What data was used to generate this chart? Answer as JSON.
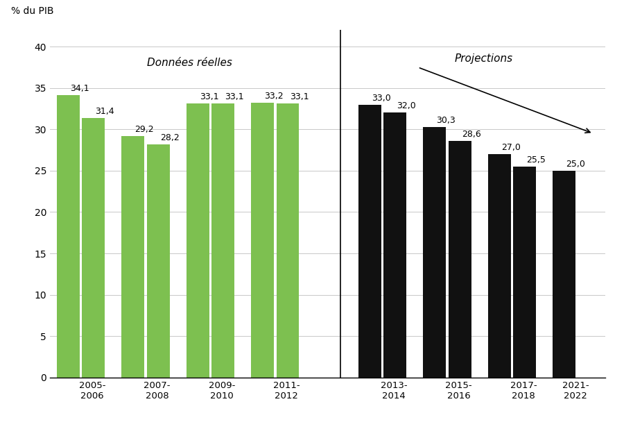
{
  "actual_values": [
    34.1,
    31.4,
    29.2,
    28.2,
    33.1,
    33.1,
    33.2,
    33.1
  ],
  "proj_values": [
    33.0,
    32.0,
    30.3,
    28.6,
    27.0,
    25.5,
    25.0
  ],
  "bar_labels_actual": [
    "34,1",
    "31,4",
    "29,2",
    "28,2",
    "33,1",
    "33,1",
    "33,2",
    "33,1"
  ],
  "bar_labels_proj": [
    "33,0",
    "32,0",
    "30,3",
    "28,6",
    "27,0",
    "25,5",
    "25,0"
  ],
  "actual_xtick_labels": [
    "2005-\n2006",
    "2007-\n2008",
    "2009-\n2010",
    "2011-\n2012"
  ],
  "proj_xtick_labels": [
    "2013-\n2014",
    "2015-\n2016",
    "2017-\n2018",
    "2021-\n2022"
  ],
  "actual_color": "#7DC050",
  "proj_color": "#111111",
  "ylabel_text": "% du PIB",
  "ylim": [
    0,
    42
  ],
  "yticks": [
    0,
    5,
    10,
    15,
    20,
    25,
    30,
    35,
    40
  ],
  "label_donnees": "Données réelles",
  "label_projections": "Projections",
  "background_color": "#ffffff",
  "grid_color": "#c8c8c8",
  "bar_label_fontsize": 9,
  "annotation_fontsize": 11
}
